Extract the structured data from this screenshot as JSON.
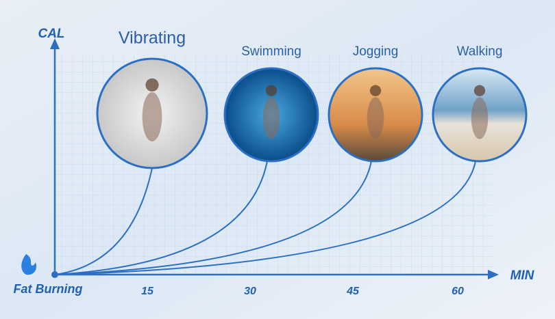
{
  "axes": {
    "y_label": "CAL",
    "x_label": "MIN",
    "origin_label": "Fat Burning",
    "x_ticks": [
      15,
      30,
      45,
      60
    ]
  },
  "activities": [
    {
      "label": "Vibrating"
    },
    {
      "label": "Swimming"
    },
    {
      "label": "Jogging"
    },
    {
      "label": "Walking"
    }
  ]
}
